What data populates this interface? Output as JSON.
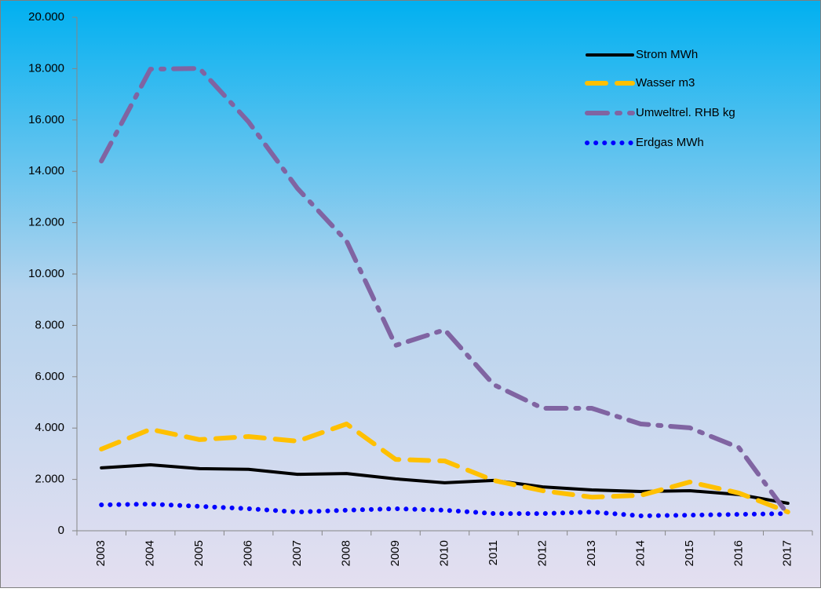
{
  "chart_data": {
    "type": "line",
    "categories": [
      "2003",
      "2004",
      "2005",
      "2006",
      "2007",
      "2008",
      "2009",
      "2010",
      "2011",
      "2012",
      "2013",
      "2014",
      "2015",
      "2016",
      "2017"
    ],
    "series": [
      {
        "name": "Strom MWh",
        "color": "#000000",
        "style": "solid",
        "values": [
          2450,
          2570,
          2420,
          2390,
          2200,
          2230,
          2020,
          1870,
          1960,
          1710,
          1590,
          1530,
          1560,
          1410,
          1070
        ]
      },
      {
        "name": "Wasser m3",
        "color": "#ffc000",
        "style": "dashed",
        "values": [
          3180,
          3950,
          3550,
          3670,
          3490,
          4160,
          2780,
          2720,
          1960,
          1560,
          1310,
          1380,
          1900,
          1470,
          730
        ]
      },
      {
        "name": "Umweltrel. RHB kg",
        "color": "#8064a2",
        "style": "dashdot",
        "values": [
          14400,
          17980,
          18010,
          15930,
          13330,
          11280,
          7220,
          7830,
          5690,
          4770,
          4770,
          4160,
          4010,
          3240,
          640
        ]
      },
      {
        "name": "Erdgas MWh",
        "color": "#0000ff",
        "style": "dotted",
        "values": [
          1010,
          1040,
          950,
          860,
          730,
          800,
          860,
          800,
          670,
          670,
          730,
          580,
          610,
          640,
          670
        ]
      }
    ],
    "ylim": [
      0,
      20000
    ],
    "yticks": [
      0,
      {
        "value": 2000,
        "label": "2.000"
      },
      {
        "value": 4000,
        "label": "4.000"
      },
      {
        "value": 6000,
        "label": "6.000"
      },
      {
        "value": 8000,
        "label": "8.000"
      },
      {
        "value": 10000,
        "label": "10.000"
      },
      {
        "value": 12000,
        "label": "12.000"
      },
      {
        "value": 14000,
        "label": "14.000"
      },
      {
        "value": 16000,
        "label": "16.000"
      },
      {
        "value": 18000,
        "label": "18.000"
      },
      {
        "value": 20000,
        "label": "20.000"
      }
    ],
    "legend": "top-right"
  }
}
